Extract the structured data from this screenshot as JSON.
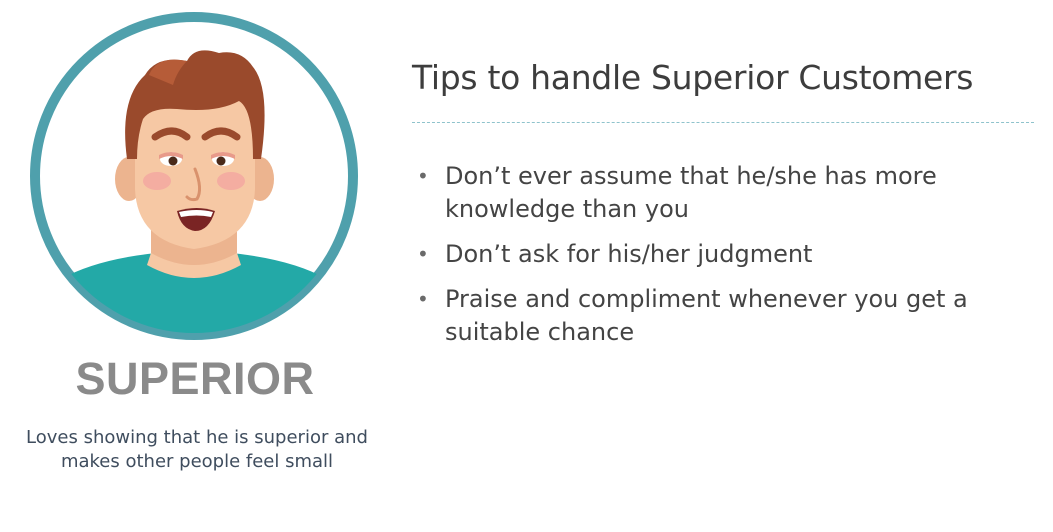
{
  "persona": {
    "name": "SUPERIOR",
    "description": "Loves showing that he is superior and makes other people feel small",
    "ring_color": "#4fa0ac",
    "shirt_color": "#23a9a7",
    "hair_color": "#9a4a2c",
    "skin_color": "#f6c8a4"
  },
  "tips": {
    "title": "Tips to handle Superior Customers",
    "items": [
      "Don’t ever assume that he/she has more knowledge than you",
      "Don’t ask for his/her judgment",
      "Praise and compliment whenever you get a suitable chance"
    ],
    "bullet": "•"
  }
}
